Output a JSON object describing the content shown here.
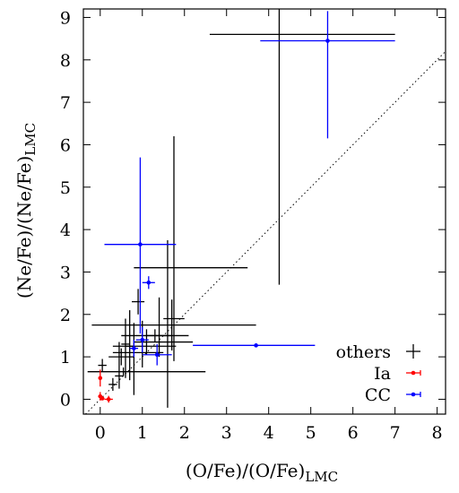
{
  "chart_data": {
    "type": "scatter",
    "title": "",
    "xlabel": "(O/Fe)/(O/Fe)",
    "xlabel_sub": "LMC",
    "ylabel": "(Ne/Fe)/(Ne/Fe)",
    "ylabel_sub": "LMC",
    "xlim": [
      -0.4,
      8.2
    ],
    "ylim": [
      -0.35,
      9.2
    ],
    "xticks": [
      0,
      1,
      2,
      3,
      4,
      5,
      6,
      7,
      8
    ],
    "yticks": [
      0,
      1,
      2,
      3,
      4,
      5,
      6,
      7,
      8,
      9
    ],
    "grid": false,
    "legend_position": "bottom-right",
    "reference_line": {
      "style": "dotted",
      "slope": 1,
      "intercept": 0,
      "color": "#000000"
    },
    "series": [
      {
        "name": "others",
        "color": "#000000",
        "points": [
          {
            "x": 4.25,
            "y": 8.6,
            "xerr": [
              1.65,
              2.75
            ],
            "yerr": [
              5.9,
              0.6
            ]
          },
          {
            "x": 1.75,
            "y": 1.9,
            "xerr": [
              0.25,
              0.25
            ],
            "yerr": [
              1.0,
              4.3
            ]
          },
          {
            "x": 1.7,
            "y": 1.75,
            "xerr": [
              1.9,
              2.0
            ],
            "yerr": [
              0.6,
              0.6
            ]
          },
          {
            "x": 1.6,
            "y": 3.1,
            "xerr": [
              0.8,
              1.9
            ],
            "yerr": [
              3.3,
              0.65
            ]
          },
          {
            "x": 1.4,
            "y": 1.5,
            "xerr": [
              0.3,
              0.3
            ],
            "yerr": [
              0.5,
              0.9
            ]
          },
          {
            "x": 1.3,
            "y": 1.5,
            "xerr": [
              0.8,
              0.8
            ],
            "yerr": [
              0.15,
              0.15
            ]
          },
          {
            "x": 1.1,
            "y": 1.35,
            "xerr": [
              0.3,
              1.1
            ],
            "yerr": [
              0.3,
              0.3
            ]
          },
          {
            "x": 1.0,
            "y": 1.25,
            "xerr": [
              0.7,
              0.8
            ],
            "yerr": [
              0.5,
              0.6
            ]
          },
          {
            "x": 0.9,
            "y": 2.3,
            "xerr": [
              0.15,
              0.15
            ],
            "yerr": [
              0.3,
              0.3
            ]
          },
          {
            "x": 0.8,
            "y": 1.1,
            "xerr": [
              0.5,
              0.7
            ],
            "yerr": [
              1.0,
              0.7
            ]
          },
          {
            "x": 0.7,
            "y": 1.25,
            "xerr": [
              0.1,
              0.1
            ],
            "yerr": [
              0.8,
              0.85
            ]
          },
          {
            "x": 0.6,
            "y": 1.3,
            "xerr": [
              0.1,
              0.1
            ],
            "yerr": [
              0.8,
              0.6
            ]
          },
          {
            "x": 0.55,
            "y": 0.65,
            "xerr": [
              0.85,
              1.95
            ],
            "yerr": [
              0.1,
              0.1
            ]
          },
          {
            "x": 0.5,
            "y": 1.0,
            "xerr": [
              0.3,
              0.3
            ],
            "yerr": [
              0.2,
              0.2
            ]
          },
          {
            "x": 0.45,
            "y": 0.55,
            "xerr": [
              0.1,
              0.1
            ],
            "yerr": [
              0.3,
              0.8
            ]
          },
          {
            "x": 0.3,
            "y": 0.35,
            "xerr": [
              0.1,
              0.1
            ],
            "yerr": [
              0.15,
              0.15
            ]
          },
          {
            "x": 0.05,
            "y": 0.8,
            "xerr": [
              0.1,
              0.1
            ],
            "yerr": [
              0.15,
              0.15
            ]
          }
        ]
      },
      {
        "name": "Ia",
        "color": "#ff0000",
        "points": [
          {
            "x": 0.0,
            "y": 0.5,
            "xerr": [
              0.02,
              0.02
            ],
            "yerr": [
              0.2,
              0.2
            ]
          },
          {
            "x": 0.0,
            "y": 0.07,
            "xerr": [
              0.05,
              0.05
            ],
            "yerr": [
              0.1,
              0.1
            ]
          },
          {
            "x": 0.05,
            "y": 0.02,
            "xerr": [
              0.05,
              0.05
            ],
            "yerr": [
              0.02,
              0.02
            ]
          },
          {
            "x": 0.2,
            "y": 0.0,
            "xerr": [
              0.1,
              0.1
            ],
            "yerr": [
              0.08,
              0.08
            ]
          }
        ]
      },
      {
        "name": "CC",
        "color": "#0000ff",
        "points": [
          {
            "x": 5.4,
            "y": 8.45,
            "xerr": [
              1.6,
              1.6
            ],
            "yerr": [
              2.3,
              0.7
            ]
          },
          {
            "x": 3.7,
            "y": 1.27,
            "xerr": [
              1.5,
              1.4
            ],
            "yerr": [
              0.02,
              0.02
            ]
          },
          {
            "x": 0.95,
            "y": 3.65,
            "xerr": [
              0.85,
              0.85
            ],
            "yerr": [
              2.1,
              2.05
            ]
          },
          {
            "x": 1.15,
            "y": 2.75,
            "xerr": [
              0.15,
              0.15
            ],
            "yerr": [
              0.15,
              0.15
            ]
          },
          {
            "x": 1.0,
            "y": 1.4,
            "xerr": [
              0.15,
              0.15
            ],
            "yerr": [
              0.3,
              0.3
            ]
          },
          {
            "x": 0.8,
            "y": 1.2,
            "xerr": [
              0.1,
              0.1
            ],
            "yerr": [
              0.2,
              0.2
            ]
          },
          {
            "x": 1.35,
            "y": 1.05,
            "xerr": [
              0.35,
              0.35
            ],
            "yerr": [
              0.25,
              0.25
            ]
          }
        ]
      }
    ]
  }
}
